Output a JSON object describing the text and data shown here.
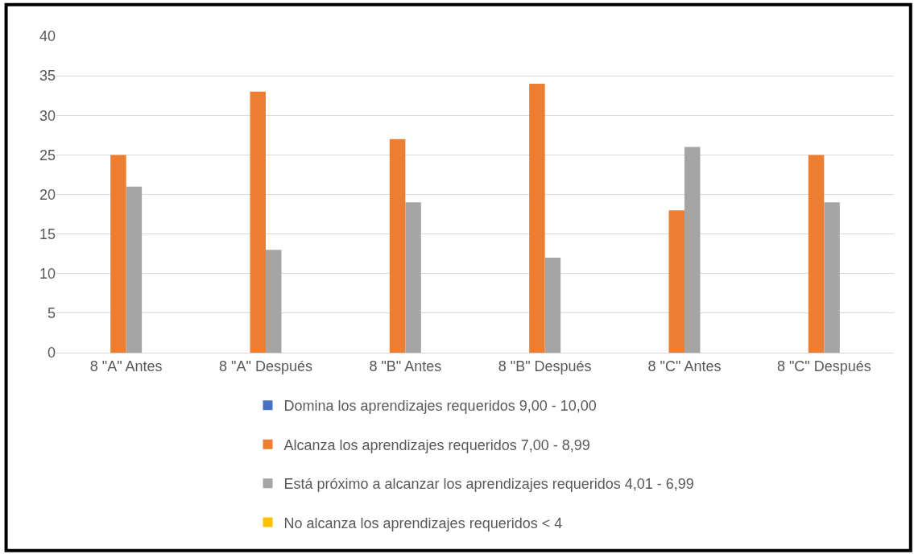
{
  "chart_data": {
    "type": "bar",
    "categories": [
      "8 \"A\" Antes",
      "8 \"A\" Después",
      "8 \"B\" Antes",
      "8 \"B\" Después",
      "8 \"C\" Antes",
      "8 \"C\" Después"
    ],
    "series": [
      {
        "name": "Domina los aprendizajes requeridos 9,00 - 10,00",
        "color": "#4472c4",
        "values": [
          0,
          0,
          0,
          0,
          0,
          0
        ]
      },
      {
        "name": "Alcanza los aprendizajes requeridos 7,00 - 8,99",
        "color": "#ed7d31",
        "values": [
          25,
          33,
          27,
          34,
          18,
          25
        ]
      },
      {
        "name": "Está próximo a alcanzar los aprendizajes requeridos 4,01 - 6,99",
        "color": "#a5a5a5",
        "values": [
          21,
          13,
          19,
          12,
          26,
          19
        ]
      },
      {
        "name": "No alcanza los aprendizajes requeridos < 4",
        "color": "#ffc000",
        "values": [
          0,
          0,
          0,
          0,
          0,
          0
        ]
      }
    ],
    "ylim": [
      0,
      40
    ],
    "yticks": [
      0,
      5,
      10,
      15,
      20,
      25,
      30,
      35,
      40
    ],
    "grid": "y",
    "legend": "bottom"
  }
}
